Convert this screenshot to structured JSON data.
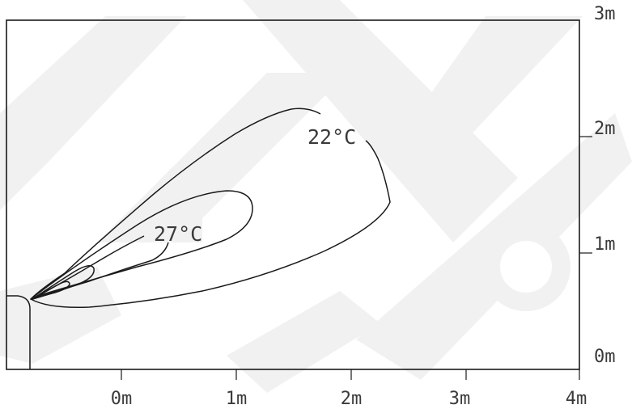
{
  "diagram": {
    "contour_labels": [
      "22°C",
      "27°C"
    ],
    "x_axis": {
      "tick_labels": [
        "0m",
        "1m",
        "2m",
        "3m",
        "4m"
      ]
    },
    "y_axis": {
      "tick_labels": [
        "0m",
        "1m",
        "2m",
        "3m"
      ]
    }
  }
}
